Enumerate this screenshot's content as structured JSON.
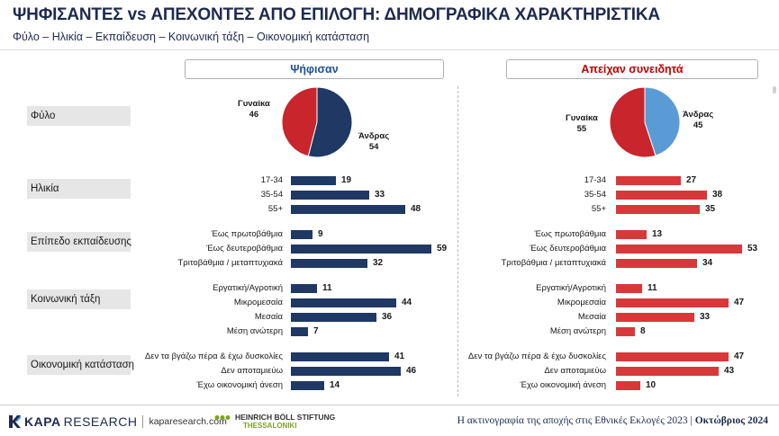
{
  "title": "ΨΗΦΙΣΑΝΤΕΣ vs ΑΠΕΧΟΝΤΕΣ ΑΠΟ ΕΠΙΛΟΓΗ: ΔΗΜΟΓΡΑΦΙΚΑ ΧΑΡΑΚΤΗΡΙΣΤΙΚΑ",
  "subtitle": "Φύλο – Ηλικία – Εκπαίδευση – Κοινωνική τάξη – Οικονομική κατάσταση",
  "headers": {
    "left": "Ψήφισαν",
    "right": "Απείχαν συνειδητά"
  },
  "colors": {
    "left_bar": "#1f3864",
    "right_bar": "#d9383a",
    "pie_red": "#c9252c",
    "pie_navy": "#1f3864",
    "pie_blue": "#5b9bd5"
  },
  "chart_data": {
    "type": "bar",
    "title": "ΨΗΦΙΣΑΝΤΕΣ vs ΑΠΕΧΟΝΤΕΣ ΑΠΟ ΕΠΙΛΟΓΗ: ΔΗΜΟΓΡΑΦΙΚΑ ΧΑΡΑΚΤΗΡΙΣΤΙΚΑ",
    "series": [
      {
        "name": "Ψήφισαν"
      },
      {
        "name": "Απείχαν συνειδητά"
      }
    ],
    "pie": {
      "category": "Φύλο",
      "left": [
        {
          "label": "Γυναίκα",
          "value": 46
        },
        {
          "label": "Άνδρας",
          "value": 54
        }
      ],
      "right": [
        {
          "label": "Γυναίκα",
          "value": 55
        },
        {
          "label": "Άνδρας",
          "value": 45
        }
      ]
    },
    "groups": [
      {
        "category": "Ηλικία",
        "rows": [
          {
            "label": "17-34",
            "left": 19,
            "right": 27
          },
          {
            "label": "35-54",
            "left": 33,
            "right": 38
          },
          {
            "label": "55+",
            "left": 48,
            "right": 35
          }
        ]
      },
      {
        "category": "Επίπεδο εκπαίδευσης",
        "rows": [
          {
            "label": "Έως πρωτοβάθμια",
            "left": 9,
            "right": 13
          },
          {
            "label": "Έως δευτεροβάθμια",
            "left": 59,
            "right": 53
          },
          {
            "label": "Τριτοβάθμια / μεταπτυχιακά",
            "left": 32,
            "right": 34
          }
        ]
      },
      {
        "category": "Κοινωνική τάξη",
        "rows": [
          {
            "label": "Εργατική/Αγροτική",
            "left": 11,
            "right": 11
          },
          {
            "label": "Μικρομεσαία",
            "left": 44,
            "right": 47
          },
          {
            "label": "Μεσαία",
            "left": 36,
            "right": 33
          },
          {
            "label": "Μέση ανώτερη",
            "left": 7,
            "right": 8
          }
        ]
      },
      {
        "category": "Οικονομική κατάσταση",
        "rows": [
          {
            "label": "Δεν τα βγάζω πέρα & έχω δυσκολίες",
            "left": 41,
            "right": 47
          },
          {
            "label": "Δεν αποταμιεύω",
            "left": 46,
            "right": 43
          },
          {
            "label": "Έχω οικονομική άνεση",
            "left": 14,
            "right": 10
          }
        ]
      }
    ],
    "xlim": [
      0,
      100
    ]
  },
  "footer": {
    "brand_kapa": "KAPA",
    "brand_research": "RESEARCH",
    "site": "kaparesearch.com",
    "partner_line1": "HEINRICH BÖLL STIFTUNG",
    "partner_line2": "THESSALONIKI",
    "caption": "Η ακτινογραφία της αποχής στις Εθνικές Εκλογές 2023 |",
    "date": "Οκτώβριος 2024"
  }
}
